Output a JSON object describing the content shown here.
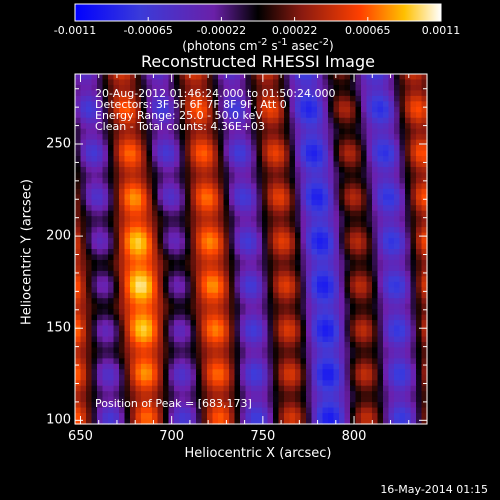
{
  "colorbar": {
    "tick_labels": [
      "-0.0011",
      "-0.00065",
      "-0.00022",
      "0.00022",
      "0.00065",
      "0.0011"
    ],
    "units_html": "(photons cm<sup>-2</sup> s<sup>-1</sup> asec<sup>-2</sup>)",
    "range": [
      -0.0011,
      0.0011
    ]
  },
  "chart_data": {
    "type": "heatmap",
    "title": "Reconstructed RHESSI Image",
    "xlabel": "Heliocentric X (arcsec)",
    "ylabel": "Heliocentric Y (arcsec)",
    "xlim": [
      647,
      840
    ],
    "ylim": [
      98,
      288
    ],
    "xticks": [
      650,
      700,
      750,
      800
    ],
    "yticks": [
      100,
      150,
      200,
      250
    ],
    "annotations": [
      "20-Aug-2012 01:46:24.000 to 01:50:24.000",
      "Detectors: 3F 5F 6F 7F 8F 9F, Att 0",
      "Energy Range: 25.0 - 50.0 keV",
      "Clean - Total counts: 4.36E+03"
    ],
    "peak_label": "Position of Peak = [683,173]",
    "peak": [
      683,
      173
    ]
  },
  "footer": {
    "timestamp": "16-May-2014 01:15"
  }
}
